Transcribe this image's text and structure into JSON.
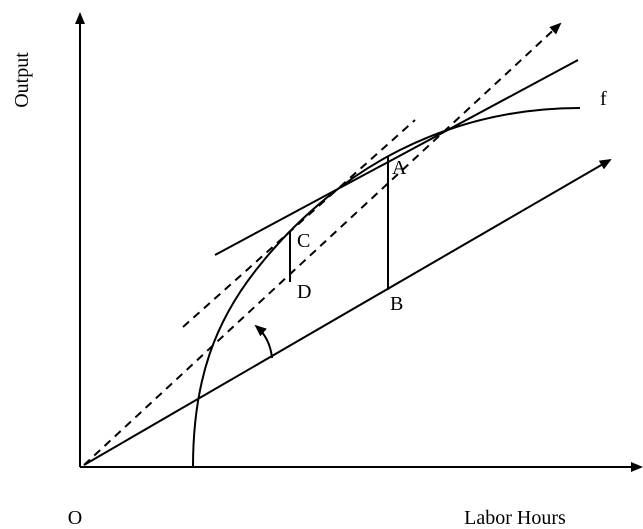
{
  "axes": {
    "y_label": "Output",
    "x_label": "Labor Hours",
    "origin": "O"
  },
  "curve": {
    "label": "f"
  },
  "points": {
    "A": "A",
    "B": "B",
    "C": "C",
    "D": "D"
  }
}
